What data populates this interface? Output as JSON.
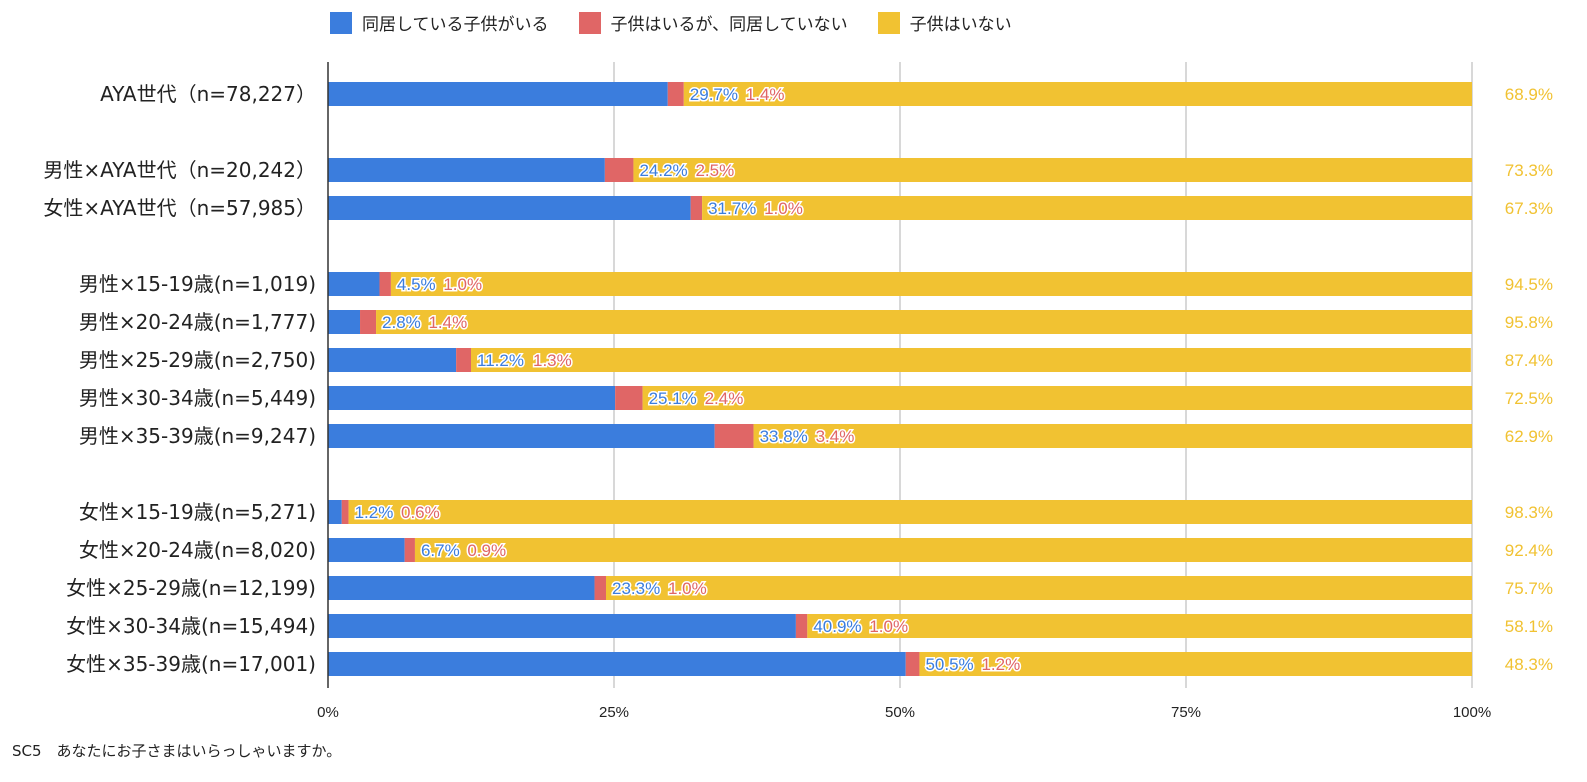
{
  "colors": {
    "cohabit": "#3b7ddd",
    "not_cohabit": "#e06666",
    "none": "#f1c232",
    "grid": "#cccccc",
    "axis": "#333333"
  },
  "chart_data": {
    "type": "bar",
    "orientation": "horizontal",
    "stacked": true,
    "normalized": true,
    "legend_position": "top",
    "grid": true,
    "xlim": [
      0,
      100
    ],
    "x_ticks": [
      "0%",
      "25%",
      "50%",
      "75%",
      "100%"
    ],
    "categories": [
      "AYA世代（n=78,227）",
      "男性×AYA世代（n=20,242）",
      "女性×AYA世代（n=57,985）",
      "男性×15-19歳(n=1,019)",
      "男性×20-24歳(n=1,777)",
      "男性×25-29歳(n=2,750)",
      "男性×30-34歳(n=5,449)",
      "男性×35-39歳(n=9,247)",
      "女性×15-19歳(n=5,271)",
      "女性×20-24歳(n=8,020)",
      "女性×25-29歳(n=12,199)",
      "女性×30-34歳(n=15,494)",
      "女性×35-39歳(n=17,001)"
    ],
    "groups": [
      [
        0
      ],
      [
        1,
        2
      ],
      [
        3,
        4,
        5,
        6,
        7
      ],
      [
        8,
        9,
        10,
        11,
        12
      ]
    ],
    "series": [
      {
        "name": "同居している子供がいる",
        "values": [
          29.7,
          24.2,
          31.7,
          4.5,
          2.8,
          11.2,
          25.1,
          33.8,
          1.2,
          6.7,
          23.3,
          40.9,
          50.5
        ],
        "labels": [
          "29.7%",
          "24.2%",
          "31.7%",
          "4.5%",
          "2.8%",
          "11.2%",
          "25.1%",
          "33.8%",
          "1.2%",
          "6.7%",
          "23.3%",
          "40.9%",
          "50.5%"
        ]
      },
      {
        "name": "子供はいるが、同居していない",
        "values": [
          1.4,
          2.5,
          1.0,
          1.0,
          1.4,
          1.3,
          2.4,
          3.4,
          0.6,
          0.9,
          1.0,
          1.0,
          1.2
        ],
        "labels": [
          "1.4%",
          "2.5%",
          "1.0%",
          "1.0%",
          "1.4%",
          "1.3%",
          "2.4%",
          "3.4%",
          "0.6%",
          "0.9%",
          "1.0%",
          "1.0%",
          "1.2%"
        ]
      },
      {
        "name": "子供はいない",
        "values": [
          68.9,
          73.3,
          67.3,
          94.5,
          95.8,
          87.4,
          72.5,
          62.9,
          98.3,
          92.4,
          75.7,
          58.1,
          48.3
        ],
        "labels": [
          "68.9%",
          "73.3%",
          "67.3%",
          "94.5%",
          "95.8%",
          "87.4%",
          "72.5%",
          "62.9%",
          "98.3%",
          "92.4%",
          "75.7%",
          "58.1%",
          "48.3%"
        ]
      }
    ]
  },
  "footnote": "SC5　あなたにお子さまはいらっしゃいますか。"
}
